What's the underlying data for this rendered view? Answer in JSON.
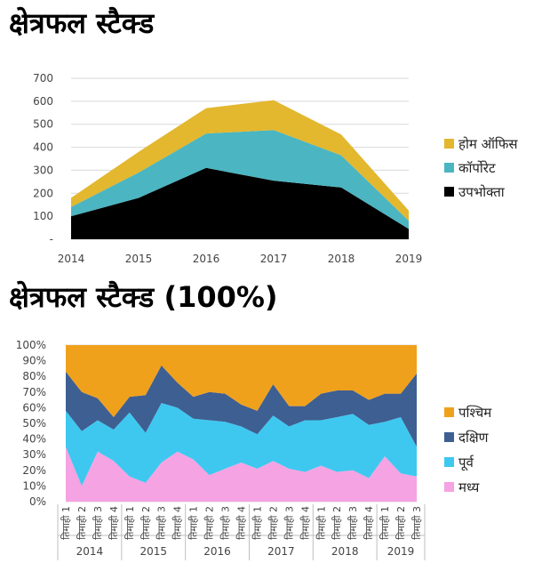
{
  "chart_data": [
    {
      "type": "area",
      "stacked": true,
      "title": "क्षेत्रफल स्टैक्ड",
      "x": [
        "2014",
        "2015",
        "2016",
        "2017",
        "2018",
        "2019"
      ],
      "y_ticks": [
        "-",
        "100",
        "200",
        "300",
        "400",
        "500",
        "600",
        "700"
      ],
      "ylim": [
        0,
        700
      ],
      "series": [
        {
          "name": "उपभोक्ता",
          "color": "#000000",
          "values": [
            100,
            180,
            310,
            255,
            225,
            45
          ]
        },
        {
          "name": "कॉर्पोरेट",
          "color": "#4BB5C1",
          "values": [
            40,
            110,
            150,
            220,
            140,
            35
          ]
        },
        {
          "name": "होम ऑफिस",
          "color": "#E3B72E",
          "values": [
            40,
            90,
            110,
            130,
            90,
            45
          ]
        }
      ],
      "legend": "right",
      "grid": true
    },
    {
      "type": "area",
      "stacked": true,
      "normalized": true,
      "title": "क्षेत्रफल स्टैक्ड (100%)",
      "quarters": [
        "तिमाही 1",
        "तिमाही 2",
        "तिमाही 3",
        "तिमाही 4"
      ],
      "years": [
        "2014",
        "2015",
        "2016",
        "2017",
        "2018",
        "2019"
      ],
      "years_quarter_count": [
        4,
        4,
        4,
        4,
        4,
        3
      ],
      "y_ticks": [
        "0%",
        "10%",
        "20%",
        "30%",
        "40%",
        "50%",
        "60%",
        "70%",
        "80%",
        "90%",
        "100%"
      ],
      "ylim": [
        0,
        100
      ],
      "series": [
        {
          "name": "मध्य",
          "color": "#F5A3E3",
          "values": [
            35,
            10,
            32,
            26,
            16,
            12,
            25,
            32,
            27,
            17,
            21,
            25,
            21,
            26,
            21,
            19,
            23,
            19,
            20,
            15,
            29,
            18,
            16
          ]
        },
        {
          "name": "पूर्व",
          "color": "#3EC8F0",
          "values": [
            23,
            35,
            20,
            20,
            41,
            32,
            38,
            28,
            26,
            35,
            30,
            23,
            22,
            29,
            27,
            33,
            29,
            35,
            36,
            34,
            22,
            36,
            19
          ]
        },
        {
          "name": "दक्षिण",
          "color": "#3E5F91",
          "values": [
            25,
            25,
            14,
            8,
            10,
            24,
            24,
            16,
            14,
            18,
            18,
            14,
            15,
            20,
            13,
            9,
            17,
            17,
            15,
            16,
            18,
            15,
            47
          ]
        },
        {
          "name": "पश्चिम",
          "color": "#F0A11C",
          "values": [
            17,
            30,
            34,
            46,
            33,
            32,
            13,
            24,
            33,
            30,
            31,
            38,
            42,
            25,
            39,
            39,
            31,
            29,
            29,
            35,
            31,
            31,
            18
          ]
        }
      ],
      "legend": "right",
      "grid": true
    }
  ]
}
